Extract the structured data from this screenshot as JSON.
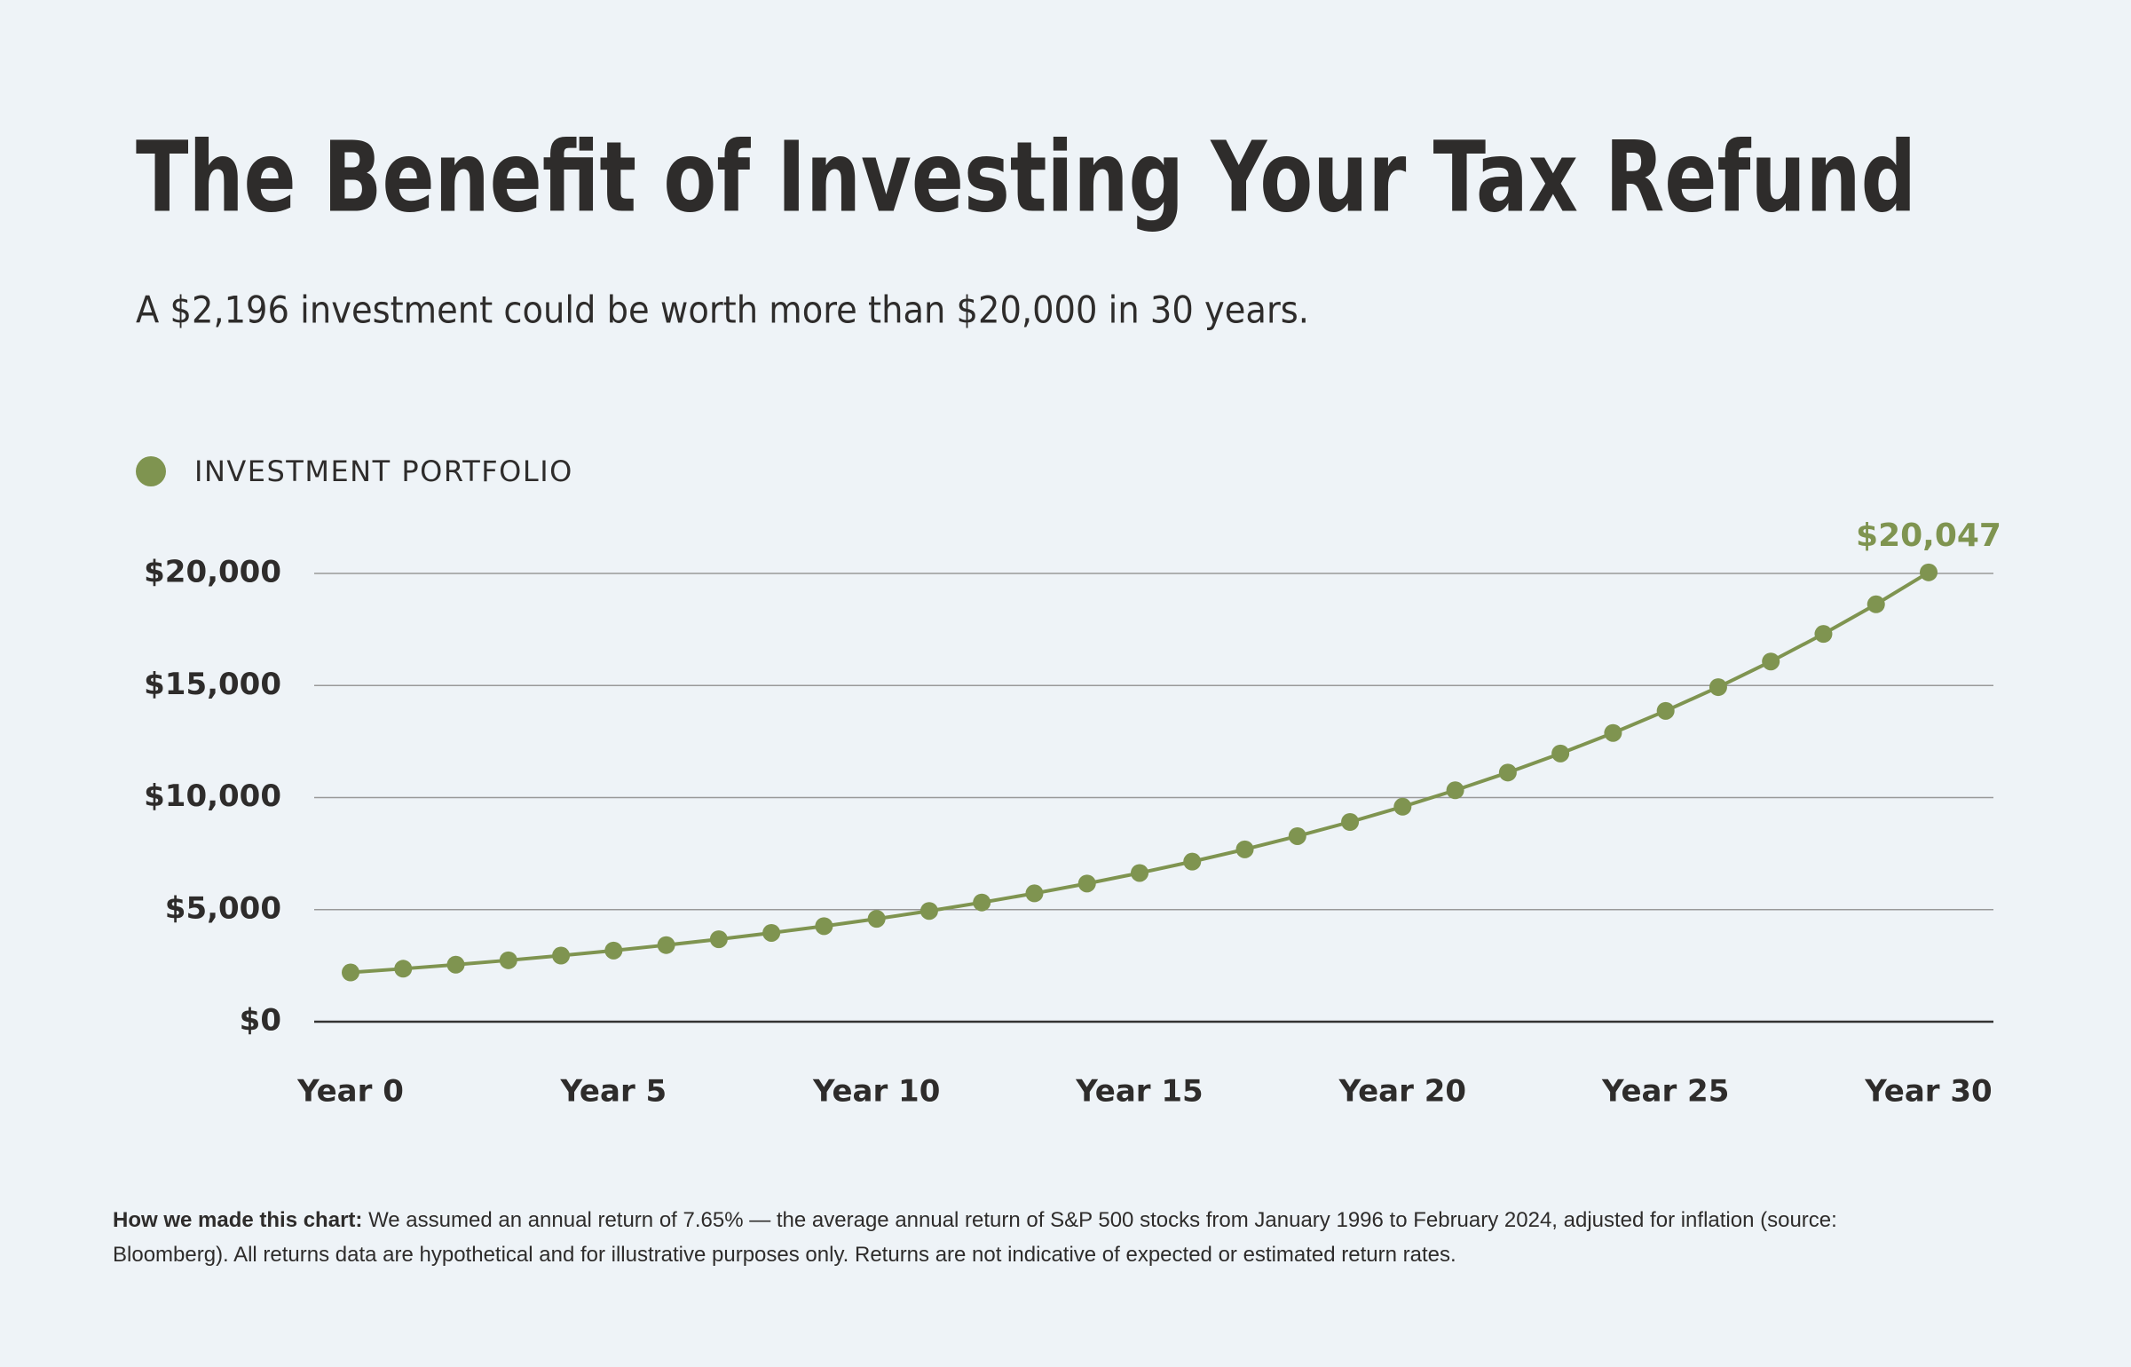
{
  "chart_data": {
    "type": "line",
    "title": "The Benefit of Investing Your Tax Refund",
    "subtitle": "A $2,196 investment could be worth more than $20,000 in 30 years.",
    "x": [
      0,
      1,
      2,
      3,
      4,
      5,
      6,
      7,
      8,
      9,
      10,
      11,
      12,
      13,
      14,
      15,
      16,
      17,
      18,
      19,
      20,
      21,
      22,
      23,
      24,
      25,
      26,
      27,
      28,
      29,
      30
    ],
    "series": [
      {
        "name": "INVESTMENT PORTFOLIO",
        "color": "#7f9450",
        "values": [
          2196,
          2364,
          2545,
          2740,
          2949,
          3175,
          3418,
          3679,
          3961,
          4264,
          4590,
          4941,
          5319,
          5726,
          6164,
          6635,
          7143,
          7689,
          8278,
          8911,
          9593,
          10326,
          11116,
          11967,
          12882,
          13868,
          14928,
          16070,
          17300,
          18623,
          20047
        ],
        "value_labels": [
          null,
          null,
          null,
          null,
          null,
          null,
          null,
          null,
          null,
          null,
          null,
          null,
          null,
          null,
          null,
          null,
          null,
          null,
          null,
          null,
          null,
          null,
          null,
          null,
          null,
          null,
          null,
          null,
          null,
          null,
          "$20,047"
        ]
      }
    ],
    "xlim": [
      0,
      30
    ],
    "xticks": [
      {
        "value": 0,
        "label": "Year 0"
      },
      {
        "value": 5,
        "label": "Year 5"
      },
      {
        "value": 10,
        "label": "Year 10"
      },
      {
        "value": 15,
        "label": "Year 15"
      },
      {
        "value": 20,
        "label": "Year 20"
      },
      {
        "value": 25,
        "label": "Year 25"
      },
      {
        "value": 30,
        "label": "Year 30"
      }
    ],
    "ylim": [
      0,
      20000
    ],
    "yticks": [
      {
        "value": 0,
        "label": "$0"
      },
      {
        "value": 5000,
        "label": "$5,000"
      },
      {
        "value": 10000,
        "label": "$10,000"
      },
      {
        "value": 15000,
        "label": "$15,000"
      },
      {
        "value": 20000,
        "label": "$20,000"
      }
    ],
    "grid": true,
    "legend": "top-left",
    "note_label": "How we made this chart:",
    "note": "We assumed an annual return of 7.65% — the average annual return of S&P 500 stocks from January 1996 to February 2024, adjusted for inflation (source: Bloomberg). All returns data are hypothetical and for illustrative purposes only. Returns are not indicative of expected or estimated return rates."
  }
}
